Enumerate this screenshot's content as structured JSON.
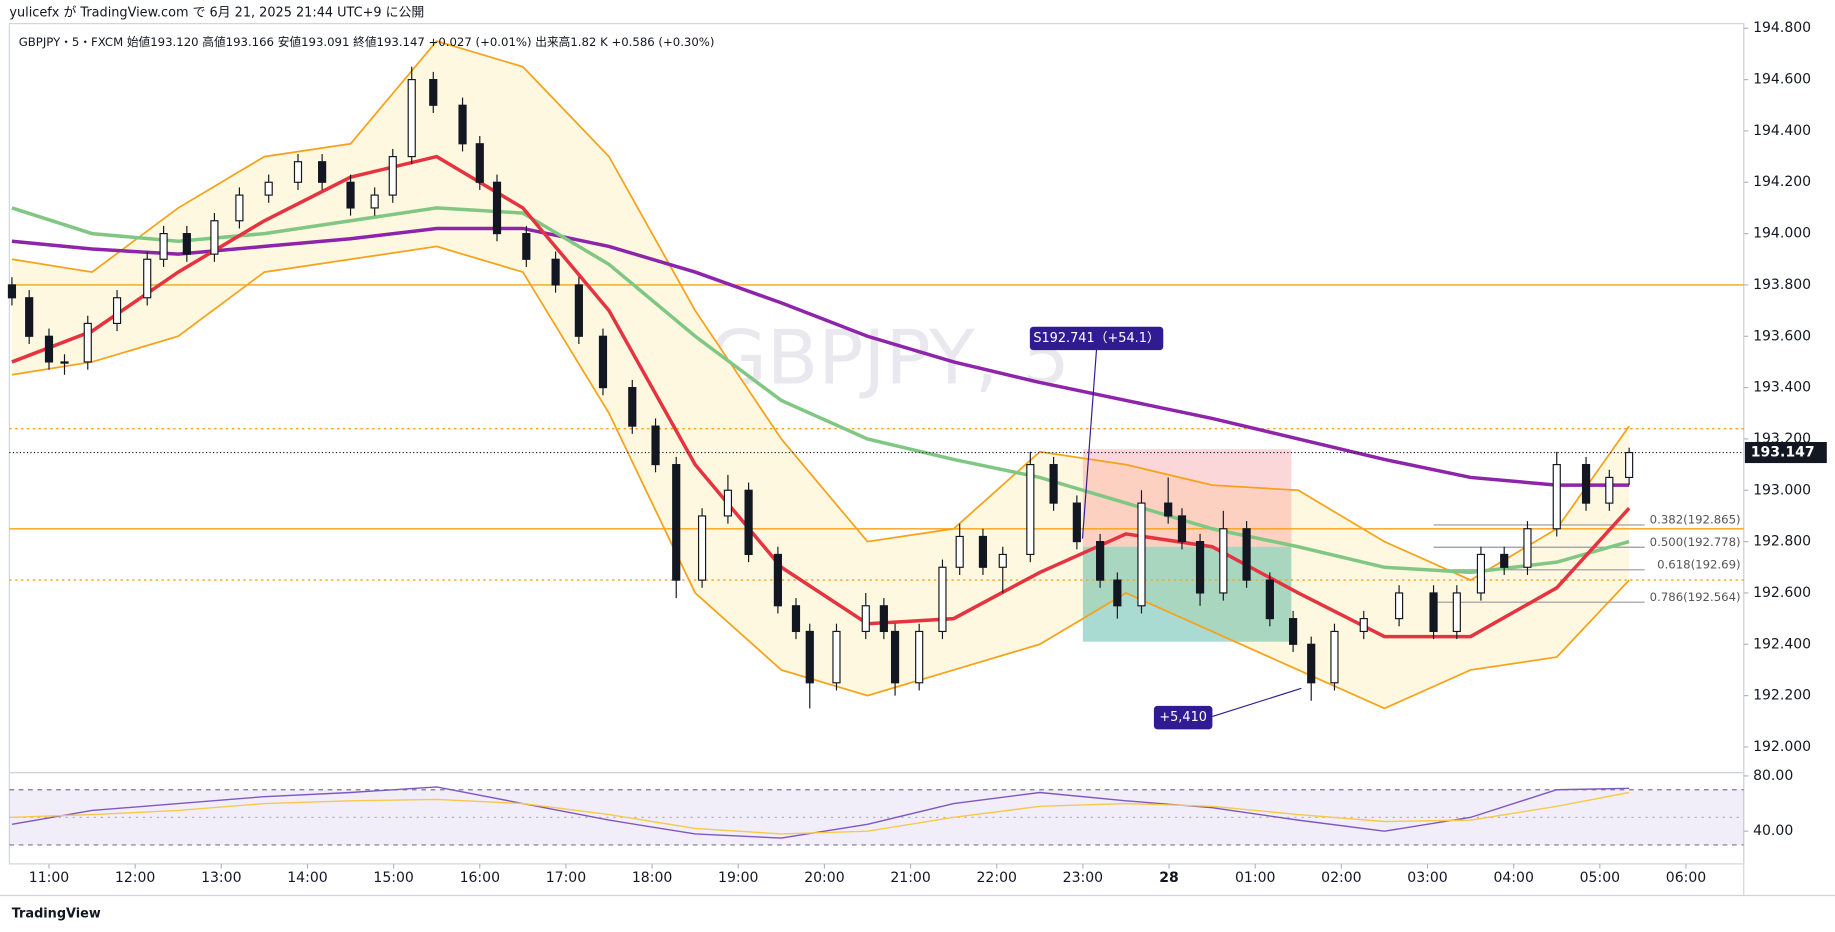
{
  "chart_data": {
    "type": "candlestick",
    "publish_text": "yulicefx が TradingView.com で 6月 21, 2025 21:44 UTC+9 に公開",
    "legend_text": "GBPJPY・5・FXCM  始値193.120  高値193.166  安値193.091  終値193.147  +0.027 (+0.01%)   出来高1.82 K  +0.586 (+0.30%)",
    "watermark": "GBPJPY, 5",
    "brand": "TradingView",
    "xlim": [
      -0.46,
      19.67
    ],
    "ylim": [
      191.9,
      194.818
    ],
    "xticks": [
      {
        "value": 0,
        "label": "11:00"
      },
      {
        "value": 1,
        "label": "12:00"
      },
      {
        "value": 2,
        "label": "13:00"
      },
      {
        "value": 3,
        "label": "14:00"
      },
      {
        "value": 4,
        "label": "15:00"
      },
      {
        "value": 5,
        "label": "16:00"
      },
      {
        "value": 6,
        "label": "17:00"
      },
      {
        "value": 7,
        "label": "18:00"
      },
      {
        "value": 8,
        "label": "19:00"
      },
      {
        "value": 9,
        "label": "20:00"
      },
      {
        "value": 10,
        "label": "21:00"
      },
      {
        "value": 11,
        "label": "22:00"
      },
      {
        "value": 12,
        "label": "23:00"
      },
      {
        "value": 13,
        "label": "28"
      },
      {
        "value": 14,
        "label": "01:00"
      },
      {
        "value": 15,
        "label": "02:00"
      },
      {
        "value": 16,
        "label": "03:00"
      },
      {
        "value": 17,
        "label": "04:00"
      },
      {
        "value": 18,
        "label": "05:00"
      },
      {
        "value": 19,
        "label": "06:00"
      }
    ],
    "yticks": [
      {
        "value": 194.8,
        "label": "194.800"
      },
      {
        "value": 194.6,
        "label": "194.600"
      },
      {
        "value": 194.4,
        "label": "194.400"
      },
      {
        "value": 194.2,
        "label": "194.200"
      },
      {
        "value": 194.0,
        "label": "194.000"
      },
      {
        "value": 193.8,
        "label": "193.800"
      },
      {
        "value": 193.6,
        "label": "193.600"
      },
      {
        "value": 193.4,
        "label": "193.400"
      },
      {
        "value": 193.2,
        "label": "193.200"
      },
      {
        "value": 193.0,
        "label": "193.000"
      },
      {
        "value": 192.8,
        "label": "192.800"
      },
      {
        "value": 192.6,
        "label": "192.600"
      },
      {
        "value": 192.4,
        "label": "192.400"
      },
      {
        "value": 192.2,
        "label": "192.200"
      },
      {
        "value": 192.0,
        "label": "192.000"
      }
    ],
    "up_color": "#ffffff",
    "down_color": "#131722",
    "candles": [
      [
        -0.43,
        193.8,
        193.83,
        193.72,
        193.75
      ],
      [
        -0.23,
        193.75,
        193.78,
        193.57,
        193.6
      ],
      [
        0,
        193.6,
        193.63,
        193.47,
        193.5
      ],
      [
        0.18,
        193.5,
        193.53,
        193.45,
        193.5
      ],
      [
        0.45,
        193.5,
        193.68,
        193.47,
        193.65
      ],
      [
        0.79,
        193.65,
        193.78,
        193.62,
        193.75
      ],
      [
        1.14,
        193.75,
        193.93,
        193.72,
        193.9
      ],
      [
        1.33,
        193.9,
        194.03,
        193.87,
        194.0
      ],
      [
        1.6,
        194.0,
        194.03,
        193.89,
        193.92
      ],
      [
        1.92,
        193.92,
        194.08,
        193.89,
        194.05
      ],
      [
        2.21,
        194.05,
        194.18,
        194.02,
        194.15
      ],
      [
        2.55,
        194.15,
        194.23,
        194.12,
        194.2
      ],
      [
        2.89,
        194.2,
        194.31,
        194.17,
        194.28
      ],
      [
        3.17,
        194.28,
        194.31,
        194.17,
        194.2
      ],
      [
        3.5,
        194.2,
        194.23,
        194.07,
        194.1
      ],
      [
        3.78,
        194.1,
        194.18,
        194.07,
        194.15
      ],
      [
        3.99,
        194.15,
        194.33,
        194.12,
        194.3
      ],
      [
        4.21,
        194.3,
        194.65,
        194.27,
        194.6
      ],
      [
        4.46,
        194.6,
        194.63,
        194.47,
        194.5
      ],
      [
        4.8,
        194.5,
        194.53,
        194.32,
        194.35
      ],
      [
        5.0,
        194.35,
        194.38,
        194.17,
        194.2
      ],
      [
        5.2,
        194.2,
        194.23,
        193.97,
        194.0
      ],
      [
        5.54,
        194.0,
        194.03,
        193.87,
        193.9
      ],
      [
        5.88,
        193.9,
        193.93,
        193.77,
        193.8
      ],
      [
        6.15,
        193.8,
        193.83,
        193.57,
        193.6
      ],
      [
        6.43,
        193.6,
        193.63,
        193.37,
        193.4
      ],
      [
        6.77,
        193.4,
        193.43,
        193.22,
        193.25
      ],
      [
        7.04,
        193.25,
        193.28,
        193.07,
        193.1
      ],
      [
        7.28,
        193.1,
        193.13,
        192.58,
        192.65
      ],
      [
        7.58,
        192.65,
        192.93,
        192.62,
        192.9
      ],
      [
        7.88,
        192.9,
        193.06,
        192.87,
        193.0
      ],
      [
        8.12,
        193.0,
        193.03,
        192.72,
        192.75
      ],
      [
        8.46,
        192.75,
        192.78,
        192.52,
        192.55
      ],
      [
        8.67,
        192.55,
        192.58,
        192.42,
        192.45
      ],
      [
        8.83,
        192.45,
        192.48,
        192.15,
        192.25
      ],
      [
        9.14,
        192.25,
        192.48,
        192.22,
        192.45
      ],
      [
        9.48,
        192.45,
        192.6,
        192.42,
        192.55
      ],
      [
        9.69,
        192.55,
        192.58,
        192.42,
        192.45
      ],
      [
        9.82,
        192.45,
        192.48,
        192.2,
        192.25
      ],
      [
        10.1,
        192.25,
        192.48,
        192.22,
        192.45
      ],
      [
        10.37,
        192.45,
        192.73,
        192.42,
        192.7
      ],
      [
        10.57,
        192.7,
        192.87,
        192.67,
        192.82
      ],
      [
        10.84,
        192.82,
        192.85,
        192.67,
        192.7
      ],
      [
        11.07,
        192.7,
        192.78,
        192.6,
        192.75
      ],
      [
        11.39,
        192.75,
        193.15,
        192.72,
        193.1
      ],
      [
        11.66,
        193.1,
        193.13,
        192.92,
        192.95
      ],
      [
        11.93,
        192.95,
        192.98,
        192.77,
        192.8
      ],
      [
        12.2,
        192.8,
        192.83,
        192.62,
        192.65
      ],
      [
        12.4,
        192.65,
        192.68,
        192.5,
        192.55
      ],
      [
        12.68,
        192.55,
        193.0,
        192.52,
        192.95
      ],
      [
        12.99,
        192.95,
        193.05,
        192.87,
        192.9
      ],
      [
        13.15,
        192.9,
        192.93,
        192.77,
        192.8
      ],
      [
        13.36,
        192.8,
        192.83,
        192.55,
        192.6
      ],
      [
        13.63,
        192.6,
        192.92,
        192.57,
        192.85
      ],
      [
        13.9,
        192.85,
        192.88,
        192.62,
        192.65
      ],
      [
        14.17,
        192.65,
        192.68,
        192.47,
        192.5
      ],
      [
        14.44,
        192.5,
        192.53,
        192.37,
        192.4
      ],
      [
        14.65,
        192.4,
        192.43,
        192.18,
        192.25
      ],
      [
        14.92,
        192.25,
        192.48,
        192.22,
        192.45
      ],
      [
        15.26,
        192.45,
        192.53,
        192.42,
        192.5
      ],
      [
        15.67,
        192.5,
        192.63,
        192.47,
        192.6
      ],
      [
        16.07,
        192.6,
        192.63,
        192.42,
        192.45
      ],
      [
        16.34,
        192.45,
        192.63,
        192.42,
        192.6
      ],
      [
        16.62,
        192.6,
        192.78,
        192.57,
        192.75
      ],
      [
        16.89,
        192.75,
        192.78,
        192.67,
        192.7
      ],
      [
        17.16,
        192.7,
        192.88,
        192.67,
        192.85
      ],
      [
        17.5,
        192.85,
        193.15,
        192.82,
        193.1
      ],
      [
        17.84,
        193.1,
        193.13,
        192.92,
        192.95
      ],
      [
        18.11,
        192.95,
        193.08,
        192.92,
        193.05
      ],
      [
        18.34,
        193.05,
        193.166,
        193.02,
        193.147
      ]
    ],
    "current_price": {
      "value": 193.147,
      "label": "193.147"
    },
    "line_x": [
      -0.43,
      0.5,
      1.5,
      2.5,
      3.5,
      4.5,
      5.5,
      6.5,
      7.5,
      8.5,
      9.5,
      10.5,
      11.5,
      12.5,
      13.5,
      14.5,
      15.5,
      16.5,
      17.5,
      18.34
    ],
    "series": [
      {
        "color": "#f7a21b",
        "values": [
          193.9,
          193.85,
          194.1,
          194.3,
          194.35,
          194.75,
          194.65,
          194.3,
          193.7,
          193.2,
          192.8,
          192.85,
          193.15,
          193.1,
          193.02,
          193.0,
          192.8,
          192.65,
          192.85,
          193.25
        ]
      },
      {
        "color": "#f7a21b",
        "values": [
          193.45,
          193.5,
          193.6,
          193.85,
          193.9,
          193.95,
          193.85,
          193.3,
          192.6,
          192.3,
          192.2,
          192.3,
          192.4,
          192.6,
          192.45,
          192.3,
          192.15,
          192.3,
          192.35,
          192.65
        ]
      },
      {
        "color": "#8e24aa",
        "values": [
          193.97,
          193.94,
          193.92,
          193.95,
          193.98,
          194.02,
          194.02,
          193.95,
          193.85,
          193.73,
          193.6,
          193.5,
          193.42,
          193.35,
          193.28,
          193.2,
          193.12,
          193.05,
          193.02,
          193.02
        ]
      },
      {
        "color": "#81c784",
        "values": [
          194.1,
          194.0,
          193.97,
          194.0,
          194.05,
          194.1,
          194.08,
          193.88,
          193.6,
          193.35,
          193.2,
          193.12,
          193.05,
          192.95,
          192.85,
          192.78,
          192.7,
          192.68,
          192.72,
          192.8
        ]
      },
      {
        "color": "#e5333f",
        "values": [
          193.5,
          193.62,
          193.85,
          194.05,
          194.22,
          194.3,
          194.1,
          193.7,
          193.1,
          192.7,
          192.48,
          192.5,
          192.68,
          192.83,
          192.78,
          192.6,
          192.43,
          192.43,
          192.62,
          192.93
        ]
      }
    ],
    "band_fill": "#fff8e1",
    "level_color": "#f7a21b",
    "levels": [
      {
        "value": 193.8,
        "style": "solid"
      },
      {
        "value": 192.85,
        "style": "solid"
      },
      {
        "value": 193.24,
        "style": "dotted"
      },
      {
        "value": 192.65,
        "style": "dotted"
      }
    ],
    "position": {
      "x_start": 12.0,
      "x_end": 14.42,
      "stop": 193.16,
      "entry": 192.78,
      "target": 192.41
    },
    "fib_x": [
      16.07,
      18.52
    ],
    "fib_levels": [
      {
        "value": 192.865,
        "label": "0.382(192.865)"
      },
      {
        "value": 192.778,
        "label": "0.500(192.778)"
      },
      {
        "value": 192.69,
        "label": "0.618(192.69)"
      },
      {
        "value": 192.564,
        "label": "0.786(192.564)"
      }
    ],
    "annotations": [
      {
        "text": "S192.741（+54.1）"
      },
      {
        "text": "+5,410"
      }
    ],
    "rsi": {
      "ylim": [
        16.3,
        82.4
      ],
      "yticks": [
        {
          "value": 80,
          "label": "80.00"
        },
        {
          "value": 40,
          "label": "40.00"
        }
      ],
      "bands": [
        70,
        30
      ],
      "mid": 50,
      "series": [
        {
          "color": "#7e57c2",
          "values": [
            45,
            55,
            60,
            65,
            68,
            72,
            60,
            48,
            38,
            35,
            45,
            60,
            68,
            62,
            57,
            48,
            40,
            50,
            70,
            71
          ]
        },
        {
          "color": "#f7c94b",
          "values": [
            50,
            52,
            55,
            60,
            62,
            63,
            60,
            52,
            42,
            38,
            40,
            50,
            58,
            60,
            58,
            52,
            47,
            48,
            58,
            68
          ]
        }
      ]
    }
  }
}
